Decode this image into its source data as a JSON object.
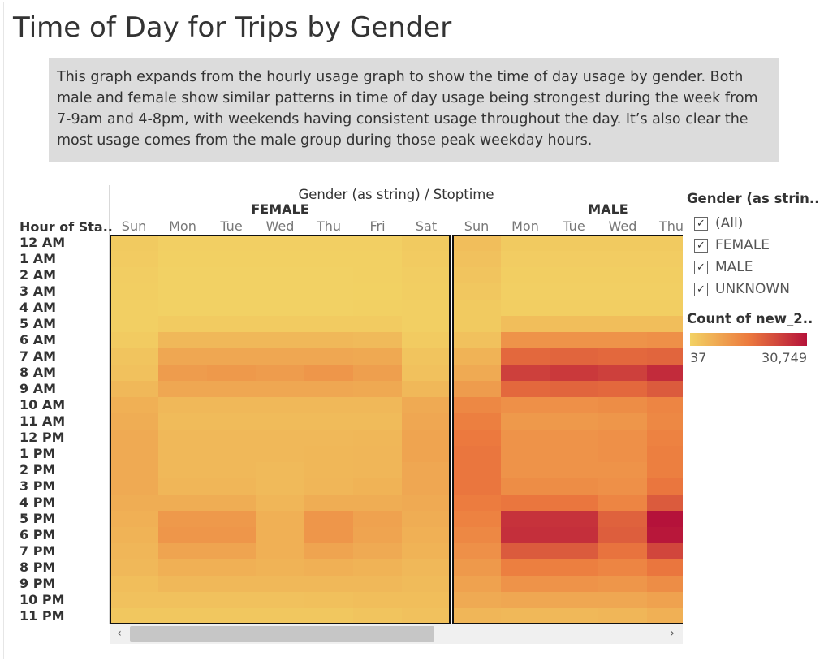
{
  "title": "Time of Day for Trips by Gender",
  "description": "This graph expands from the hourly usage graph to show the time of day usage by gender. Both male and female show similar patterns in time of day usage being strongest during the week from 7-9am and 4-8pm, with weekends having consistent usage throughout the day. It’s also clear the most usage comes from the male group during those peak weekday hours.",
  "filter_legend": {
    "title": "Gender (as strin..",
    "items": [
      {
        "label": "(All)",
        "checked": true
      },
      {
        "label": "FEMALE",
        "checked": true
      },
      {
        "label": "MALE",
        "checked": true
      },
      {
        "label": "UNKNOWN",
        "checked": true
      }
    ]
  },
  "color_legend": {
    "title": "Count of new_2..",
    "min_label": "37",
    "max_label": "30,749",
    "color_low": "#f2d264",
    "color_mid": "#ec7a3e",
    "color_high": "#b5123a"
  },
  "scrollbar": {
    "left_arrow": "‹",
    "right_arrow": "›"
  },
  "chart_data": {
    "type": "heatmap",
    "column_header": "Gender (as string) / Stoptime",
    "row_header": "Hour of Sta..",
    "value_min": 37,
    "value_max": 30749,
    "rows": [
      "12 AM",
      "1 AM",
      "2 AM",
      "3 AM",
      "4 AM",
      "5 AM",
      "6 AM",
      "7 AM",
      "8 AM",
      "9 AM",
      "10 AM",
      "11 AM",
      "12 PM",
      "1 PM",
      "2 PM",
      "3 PM",
      "4 PM",
      "5 PM",
      "6 PM",
      "7 PM",
      "8 PM",
      "9 PM",
      "10 PM",
      "11 PM"
    ],
    "panels": [
      {
        "name": "FEMALE",
        "columns": [
          "Sun",
          "Mon",
          "Tue",
          "Wed",
          "Thu",
          "Fri",
          "Sat"
        ],
        "values": [
          [
            1500,
            500,
            500,
            500,
            500,
            600,
            1500
          ],
          [
            1200,
            300,
            300,
            300,
            300,
            400,
            1200
          ],
          [
            900,
            200,
            200,
            200,
            200,
            300,
            900
          ],
          [
            700,
            150,
            150,
            150,
            150,
            250,
            700
          ],
          [
            500,
            200,
            200,
            200,
            200,
            300,
            500
          ],
          [
            600,
            1300,
            1300,
            1300,
            1300,
            1300,
            600
          ],
          [
            1200,
            4500,
            4500,
            4500,
            4500,
            4200,
            1200
          ],
          [
            2500,
            7500,
            7500,
            7500,
            7500,
            7200,
            2500
          ],
          [
            3000,
            9500,
            10000,
            9500,
            10500,
            9000,
            3000
          ],
          [
            4500,
            7500,
            7500,
            7500,
            7500,
            7200,
            4500
          ],
          [
            6000,
            4500,
            4500,
            4500,
            4500,
            4500,
            7000
          ],
          [
            6500,
            4000,
            4000,
            4000,
            4000,
            4000,
            7500
          ],
          [
            7000,
            4500,
            4500,
            4500,
            4500,
            4800,
            8000
          ],
          [
            7000,
            4500,
            4500,
            4500,
            4800,
            5000,
            8000
          ],
          [
            7000,
            4500,
            4500,
            4200,
            4800,
            5000,
            7500
          ],
          [
            7000,
            5000,
            5000,
            4200,
            5000,
            5500,
            7500
          ],
          [
            6500,
            6500,
            6500,
            5000,
            6500,
            6500,
            7000
          ],
          [
            6000,
            10000,
            10000,
            6000,
            10500,
            8500,
            6500
          ],
          [
            5500,
            10500,
            10500,
            6000,
            10500,
            8000,
            6000
          ],
          [
            5000,
            8000,
            8000,
            6000,
            8000,
            7000,
            5500
          ],
          [
            4500,
            6000,
            6000,
            5500,
            6000,
            5500,
            4500
          ],
          [
            3500,
            4500,
            4500,
            4500,
            4500,
            4500,
            4000
          ],
          [
            3000,
            3000,
            3000,
            3000,
            3200,
            3500,
            3500
          ],
          [
            2000,
            2000,
            2000,
            2000,
            2000,
            2500,
            3000
          ]
        ]
      },
      {
        "name": "MALE",
        "columns": [
          "Sun",
          "Mon",
          "Tue",
          "Wed",
          "Thu"
        ],
        "values": [
          [
            3500,
            1500,
            1500,
            1500,
            1500
          ],
          [
            3000,
            1000,
            1000,
            1000,
            1000
          ],
          [
            2500,
            800,
            800,
            800,
            800
          ],
          [
            2000,
            600,
            600,
            600,
            600
          ],
          [
            1500,
            700,
            700,
            700,
            700
          ],
          [
            1500,
            3500,
            3500,
            3500,
            3500
          ],
          [
            3000,
            11000,
            11000,
            11000,
            11500
          ],
          [
            5500,
            18000,
            18500,
            18000,
            18500
          ],
          [
            7000,
            24000,
            25000,
            24000,
            27000
          ],
          [
            9500,
            18000,
            18500,
            18000,
            20000
          ],
          [
            13000,
            11500,
            11500,
            12000,
            13500
          ],
          [
            14500,
            10000,
            10000,
            10500,
            13000
          ],
          [
            15500,
            11000,
            11000,
            11500,
            14000
          ],
          [
            16000,
            11000,
            11000,
            11500,
            14500
          ],
          [
            16000,
            11000,
            11000,
            11000,
            14500
          ],
          [
            16000,
            12000,
            12000,
            11500,
            16000
          ],
          [
            15000,
            16000,
            16000,
            13500,
            20000
          ],
          [
            14000,
            26000,
            26000,
            19000,
            30749
          ],
          [
            13000,
            26500,
            26500,
            19500,
            30000
          ],
          [
            11500,
            20000,
            20000,
            16500,
            23000
          ],
          [
            10000,
            14500,
            14500,
            13500,
            16000
          ],
          [
            8500,
            11000,
            11000,
            10500,
            12000
          ],
          [
            7000,
            7500,
            7500,
            7500,
            8500
          ],
          [
            5000,
            4500,
            4500,
            5000,
            6000
          ]
        ]
      }
    ]
  }
}
